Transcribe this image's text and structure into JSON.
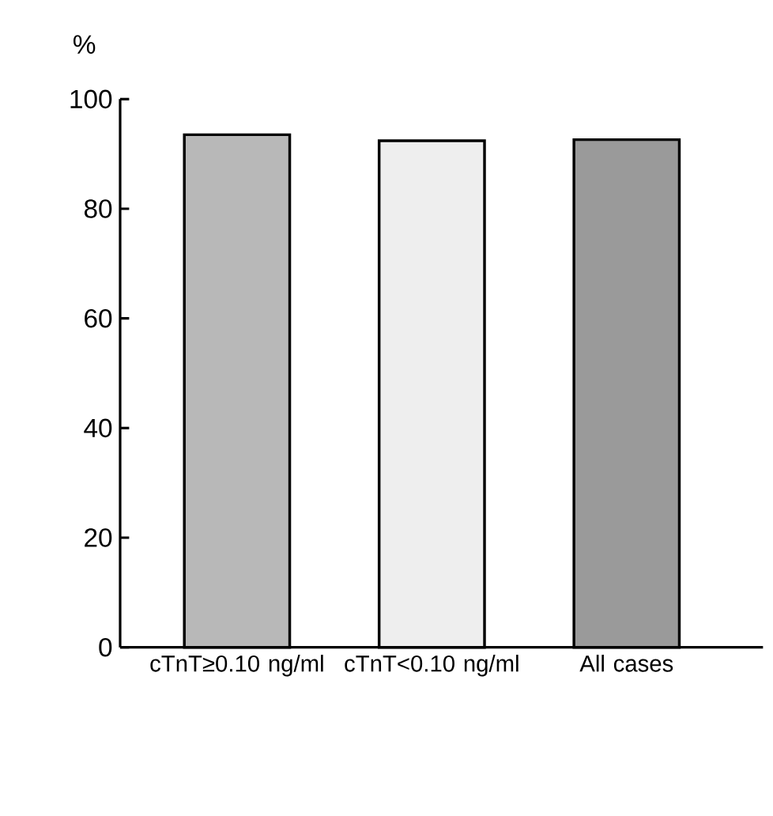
{
  "chart_data": {
    "type": "bar",
    "ylabel": "%",
    "categories": [
      "cTnT≥0.10 ng/ml",
      "cTnT<0.10 ng/ml",
      "All cases"
    ],
    "values": [
      93.5,
      92.4,
      92.6
    ],
    "colors": [
      "#b8b8b8",
      "#eeeeee",
      "#9a9a9a"
    ],
    "ylim": [
      0,
      100
    ],
    "yticks": [
      0,
      20,
      40,
      60,
      80,
      100
    ]
  }
}
